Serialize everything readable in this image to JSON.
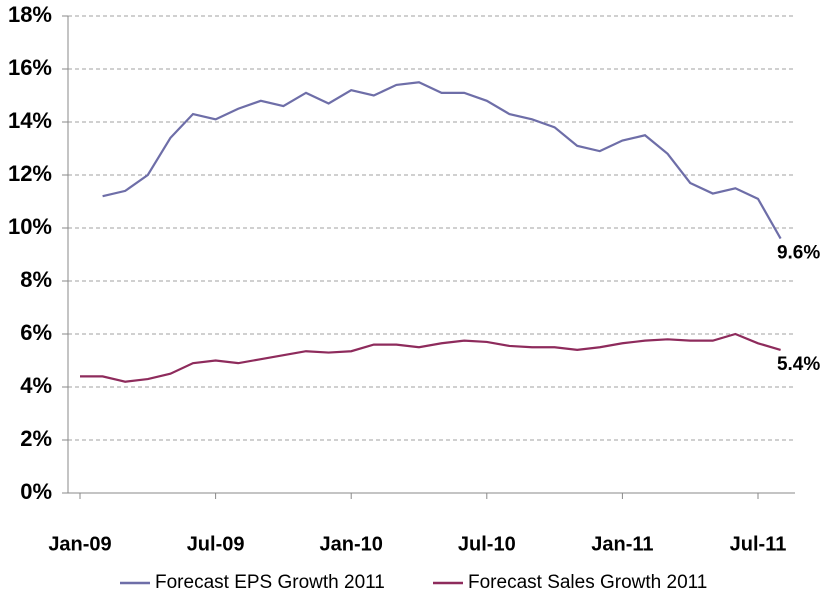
{
  "chart_data": {
    "type": "line",
    "categories": [
      "Jan-09",
      null,
      null,
      null,
      null,
      null,
      "Jul-09",
      null,
      null,
      null,
      null,
      null,
      "Jan-10",
      null,
      null,
      null,
      null,
      null,
      "Jul-10",
      null,
      null,
      null,
      null,
      null,
      "Jan-11",
      null,
      null,
      null,
      null,
      null,
      "Jul-11",
      null
    ],
    "series": [
      {
        "name": "Forecast EPS Growth 2011",
        "color": "#6e6ea8",
        "values": [
          null,
          11.2,
          11.4,
          12.0,
          13.4,
          14.3,
          14.1,
          14.5,
          14.8,
          14.6,
          15.1,
          14.7,
          15.2,
          15.0,
          15.4,
          15.5,
          15.1,
          15.1,
          14.8,
          14.3,
          14.1,
          13.8,
          13.1,
          12.9,
          13.3,
          13.5,
          12.8,
          11.7,
          11.3,
          11.5,
          11.1,
          9.6
        ],
        "value_labels": [
          null,
          null,
          null,
          null,
          null,
          null,
          null,
          null,
          null,
          null,
          null,
          null,
          null,
          null,
          null,
          null,
          null,
          null,
          null,
          null,
          null,
          null,
          null,
          null,
          null,
          null,
          null,
          null,
          null,
          null,
          null,
          "9.6%"
        ]
      },
      {
        "name": "Forecast Sales Growth 2011",
        "color": "#8e2b5c",
        "values": [
          4.4,
          4.4,
          4.2,
          4.3,
          4.5,
          4.9,
          5.0,
          4.9,
          5.05,
          5.2,
          5.35,
          5.3,
          5.35,
          5.6,
          5.6,
          5.5,
          5.65,
          5.75,
          5.7,
          5.55,
          5.5,
          5.5,
          5.4,
          5.5,
          5.65,
          5.75,
          5.8,
          5.75,
          5.75,
          6.0,
          5.65,
          5.4
        ],
        "value_labels": [
          null,
          null,
          null,
          null,
          null,
          null,
          null,
          null,
          null,
          null,
          null,
          null,
          null,
          null,
          null,
          null,
          null,
          null,
          null,
          null,
          null,
          null,
          null,
          null,
          null,
          null,
          null,
          null,
          null,
          null,
          null,
          "5.4%"
        ]
      }
    ],
    "ylim": [
      0,
      18
    ],
    "yticks": [
      {
        "value": 0,
        "label": "0%"
      },
      {
        "value": 2,
        "label": "2%"
      },
      {
        "value": 4,
        "label": "4%"
      },
      {
        "value": 6,
        "label": "6%"
      },
      {
        "value": 8,
        "label": "8%"
      },
      {
        "value": 10,
        "label": "10%"
      },
      {
        "value": 12,
        "label": "12%"
      },
      {
        "value": 14,
        "label": "14%"
      },
      {
        "value": 16,
        "label": "16%"
      },
      {
        "value": 18,
        "label": "18%"
      }
    ],
    "grid": true,
    "legend": "bottom"
  }
}
